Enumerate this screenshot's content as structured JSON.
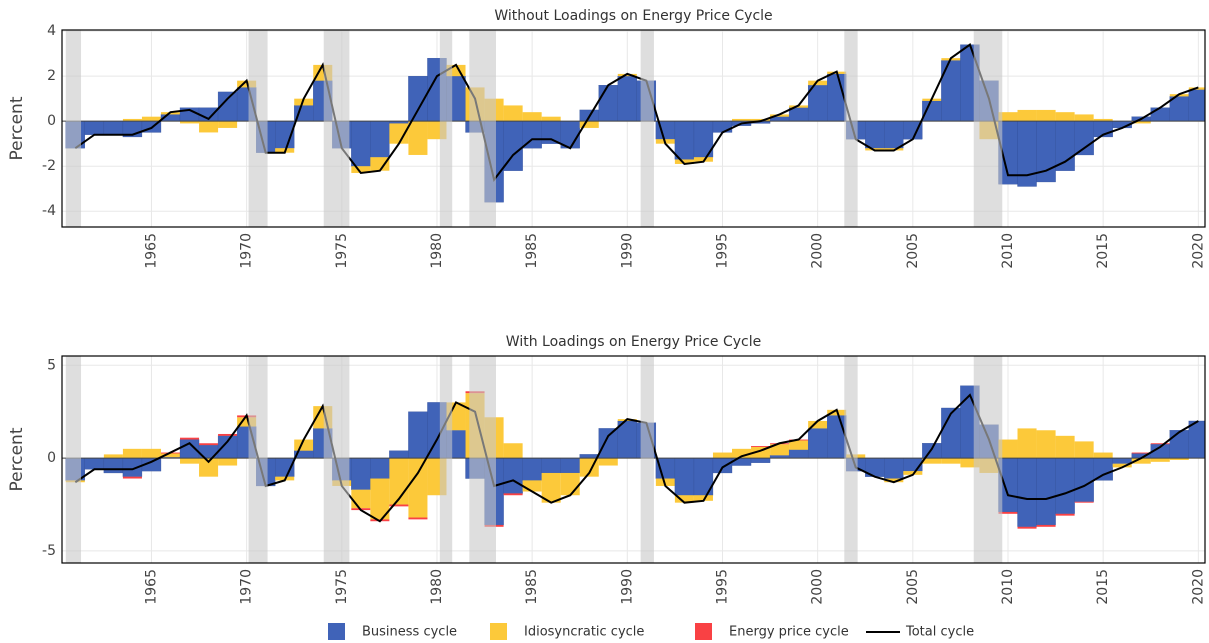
{
  "chart_data": [
    {
      "type": "bar",
      "title": "Without Loadings on Energy Price Cycle",
      "ylabel": "Percent",
      "x": [
        1961,
        1962,
        1963,
        1964,
        1965,
        1966,
        1967,
        1968,
        1969,
        1970,
        1971,
        1972,
        1973,
        1974,
        1975,
        1976,
        1977,
        1978,
        1979,
        1980,
        1981,
        1982,
        1983,
        1984,
        1985,
        1986,
        1987,
        1988,
        1989,
        1990,
        1991,
        1992,
        1993,
        1994,
        1995,
        1996,
        1997,
        1998,
        1999,
        2000,
        2001,
        2002,
        2003,
        2004,
        2005,
        2006,
        2007,
        2008,
        2009,
        2010,
        2011,
        2012,
        2013,
        2014,
        2015,
        2016,
        2017,
        2018,
        2019,
        2020
      ],
      "series": [
        {
          "name": "Business cycle",
          "type": "bar",
          "color": "#4063b8",
          "values": [
            -1.2,
            -0.6,
            -0.6,
            -0.7,
            -0.5,
            0.3,
            0.6,
            0.6,
            1.3,
            1.5,
            -1.4,
            -1.2,
            0.7,
            1.8,
            -1.2,
            -2.0,
            -1.6,
            -0.1,
            2.0,
            2.8,
            2.0,
            -0.5,
            -3.6,
            -2.2,
            -1.2,
            -1.0,
            -1.2,
            0.5,
            1.6,
            2.0,
            1.8,
            -0.8,
            -1.7,
            -1.6,
            -0.5,
            -0.2,
            -0.1,
            0.2,
            0.6,
            1.6,
            2.1,
            -0.8,
            -1.2,
            -1.2,
            -0.8,
            0.9,
            2.7,
            3.4,
            1.8,
            -2.8,
            -2.9,
            -2.7,
            -2.2,
            -1.5,
            -0.7,
            -0.3,
            0.2,
            0.6,
            1.1,
            1.4
          ]
        },
        {
          "name": "Idiosyncratic cycle",
          "type": "bar",
          "color": "#fcc93a",
          "values": [
            0,
            0,
            0,
            0.1,
            0.2,
            0.1,
            -0.1,
            -0.5,
            -0.3,
            0.3,
            0,
            -0.2,
            0.3,
            0.7,
            0,
            -0.3,
            -0.6,
            -0.9,
            -1.5,
            -0.8,
            0.5,
            1.5,
            1.0,
            0.7,
            0.4,
            0.2,
            0,
            -0.3,
            0,
            0.1,
            0,
            -0.2,
            -0.2,
            -0.2,
            0,
            0.1,
            0.1,
            0.1,
            0.1,
            0.2,
            0.1,
            0,
            -0.1,
            -0.1,
            0,
            0.1,
            0.1,
            0,
            -0.8,
            0.4,
            0.5,
            0.5,
            0.4,
            0.3,
            0.1,
            0,
            -0.1,
            0,
            0.1,
            0.1
          ]
        },
        {
          "name": "Total cycle",
          "type": "line",
          "color": "#000000",
          "values": [
            -1.2,
            -0.6,
            -0.6,
            -0.6,
            -0.3,
            0.4,
            0.5,
            0.1,
            1.0,
            1.8,
            -1.4,
            -1.4,
            1.0,
            2.5,
            -1.2,
            -2.3,
            -2.2,
            -1.0,
            0.5,
            2.0,
            2.5,
            1.0,
            -2.6,
            -1.5,
            -0.8,
            -0.8,
            -1.2,
            0.2,
            1.6,
            2.1,
            1.8,
            -1.0,
            -1.9,
            -1.8,
            -0.5,
            -0.1,
            0.0,
            0.3,
            0.7,
            1.8,
            2.2,
            -0.8,
            -1.3,
            -1.3,
            -0.8,
            1.0,
            2.8,
            3.4,
            1.0,
            -2.4,
            -2.4,
            -2.2,
            -1.8,
            -1.2,
            -0.6,
            -0.3,
            0.1,
            0.6,
            1.2,
            1.5
          ]
        }
      ],
      "recessions": [
        [
          1960.5,
          1961.3
        ],
        [
          1970.1,
          1971.1
        ],
        [
          1974.05,
          1975.4
        ],
        [
          1980.15,
          1980.8
        ],
        [
          1981.7,
          1983.1
        ],
        [
          1990.7,
          1991.4
        ],
        [
          2001.4,
          2002.1
        ],
        [
          2008.2,
          2009.7
        ]
      ],
      "xlim": [
        1960.3,
        2020.35
      ],
      "xticks": [
        1965,
        1970,
        1975,
        1980,
        1985,
        1990,
        1995,
        2000,
        2005,
        2010,
        2015,
        2020
      ],
      "ylim": [
        -4.7,
        4.05
      ],
      "yticks": [
        -4,
        -2,
        0,
        2,
        4
      ],
      "grid": true
    },
    {
      "type": "bar",
      "title": "With Loadings on Energy Price Cycle",
      "ylabel": "Percent",
      "x": [
        1961,
        1962,
        1963,
        1964,
        1965,
        1966,
        1967,
        1968,
        1969,
        1970,
        1971,
        1972,
        1973,
        1974,
        1975,
        1976,
        1977,
        1978,
        1979,
        1980,
        1981,
        1982,
        1983,
        1984,
        1985,
        1986,
        1987,
        1988,
        1989,
        1990,
        1991,
        1992,
        1993,
        1994,
        1995,
        1996,
        1997,
        1998,
        1999,
        2000,
        2001,
        2002,
        2003,
        2004,
        2005,
        2006,
        2007,
        2008,
        2009,
        2010,
        2011,
        2012,
        2013,
        2014,
        2015,
        2016,
        2017,
        2018,
        2019,
        2020
      ],
      "series": [
        {
          "name": "Business cycle",
          "type": "bar",
          "color": "#4063b8",
          "values": [
            -1.2,
            -0.6,
            -0.8,
            -1.0,
            -0.7,
            0.05,
            1.0,
            0.7,
            1.2,
            1.7,
            -1.5,
            -1.0,
            0.4,
            1.6,
            -1.2,
            -1.7,
            -1.1,
            0.4,
            2.5,
            3.0,
            1.5,
            -1.1,
            -3.6,
            -1.9,
            -1.2,
            -0.8,
            -0.8,
            0.2,
            1.6,
            2.0,
            1.9,
            -1.1,
            -2.0,
            -2.0,
            -0.8,
            -0.4,
            -0.25,
            0.15,
            0.45,
            1.6,
            2.3,
            -0.7,
            -1.0,
            -1.1,
            -0.7,
            0.8,
            2.7,
            3.9,
            1.8,
            -2.9,
            -3.7,
            -3.6,
            -3.0,
            -2.35,
            -1.2,
            -0.3,
            0.25,
            0.75,
            1.5,
            2.0
          ]
        },
        {
          "name": "Idiosyncratic cycle",
          "type": "bar",
          "color": "#fcc93a",
          "values": [
            -0.1,
            0,
            0.2,
            0.5,
            0.5,
            0.2,
            -0.3,
            -1.0,
            -0.4,
            0.5,
            0,
            -0.2,
            0.6,
            1.2,
            -0.3,
            -1.0,
            -2.2,
            -2.5,
            -3.2,
            -2.0,
            1.5,
            3.5,
            2.2,
            0.8,
            -0.6,
            -1.6,
            -1.2,
            -1.0,
            -0.4,
            0.1,
            0,
            -0.4,
            -0.4,
            -0.3,
            0.3,
            0.5,
            0.6,
            0.6,
            0.5,
            0.4,
            0.3,
            0.2,
            0,
            -0.2,
            -0.2,
            -0.3,
            -0.3,
            -0.5,
            -0.8,
            1.0,
            1.6,
            1.5,
            1.2,
            0.9,
            0.3,
            -0.2,
            -0.3,
            -0.2,
            -0.1,
            0
          ]
        },
        {
          "name": "Energy price cycle",
          "type": "bar",
          "color": "#f94144",
          "values": [
            0,
            0,
            0,
            -0.1,
            0,
            0.05,
            0.1,
            0.1,
            0.1,
            0.1,
            0,
            0,
            0,
            0,
            0,
            -0.1,
            -0.1,
            -0.1,
            -0.1,
            0,
            0,
            0.1,
            -0.1,
            -0.1,
            0,
            0,
            0,
            0,
            0,
            0,
            0,
            0,
            0,
            0,
            0,
            0,
            0.05,
            0.05,
            0.05,
            0,
            0,
            0,
            0,
            0,
            0,
            0,
            0,
            0,
            0,
            -0.1,
            -0.1,
            -0.1,
            -0.1,
            -0.05,
            0,
            0,
            0.05,
            0.05,
            0,
            0
          ]
        },
        {
          "name": "Total cycle",
          "type": "line",
          "color": "#000000",
          "values": [
            -1.3,
            -0.6,
            -0.6,
            -0.6,
            -0.2,
            0.3,
            0.8,
            -0.2,
            0.9,
            2.3,
            -1.5,
            -1.2,
            1.0,
            2.8,
            -1.5,
            -2.8,
            -3.4,
            -2.2,
            -0.8,
            1.0,
            3.0,
            2.5,
            -1.5,
            -1.2,
            -1.8,
            -2.4,
            -2.0,
            -0.8,
            1.2,
            2.1,
            1.9,
            -1.5,
            -2.4,
            -2.3,
            -0.5,
            0.1,
            0.4,
            0.8,
            1.0,
            2.0,
            2.6,
            -0.5,
            -1.0,
            -1.3,
            -0.9,
            0.5,
            2.4,
            3.4,
            1.0,
            -2.0,
            -2.2,
            -2.2,
            -1.9,
            -1.5,
            -0.9,
            -0.5,
            0.0,
            0.6,
            1.4,
            2.0
          ]
        }
      ],
      "recessions": [
        [
          1960.5,
          1961.3
        ],
        [
          1970.1,
          1971.1
        ],
        [
          1974.05,
          1975.4
        ],
        [
          1980.15,
          1980.8
        ],
        [
          1981.7,
          1983.1
        ],
        [
          1990.7,
          1991.4
        ],
        [
          2001.4,
          2002.1
        ],
        [
          2008.2,
          2009.7
        ]
      ],
      "xlim": [
        1960.3,
        2020.35
      ],
      "xticks": [
        1965,
        1970,
        1975,
        1980,
        1985,
        1990,
        1995,
        2000,
        2005,
        2010,
        2015,
        2020
      ],
      "ylim": [
        -5.65,
        5.5
      ],
      "yticks": [
        -5,
        0,
        5
      ],
      "grid": true
    }
  ]
}
